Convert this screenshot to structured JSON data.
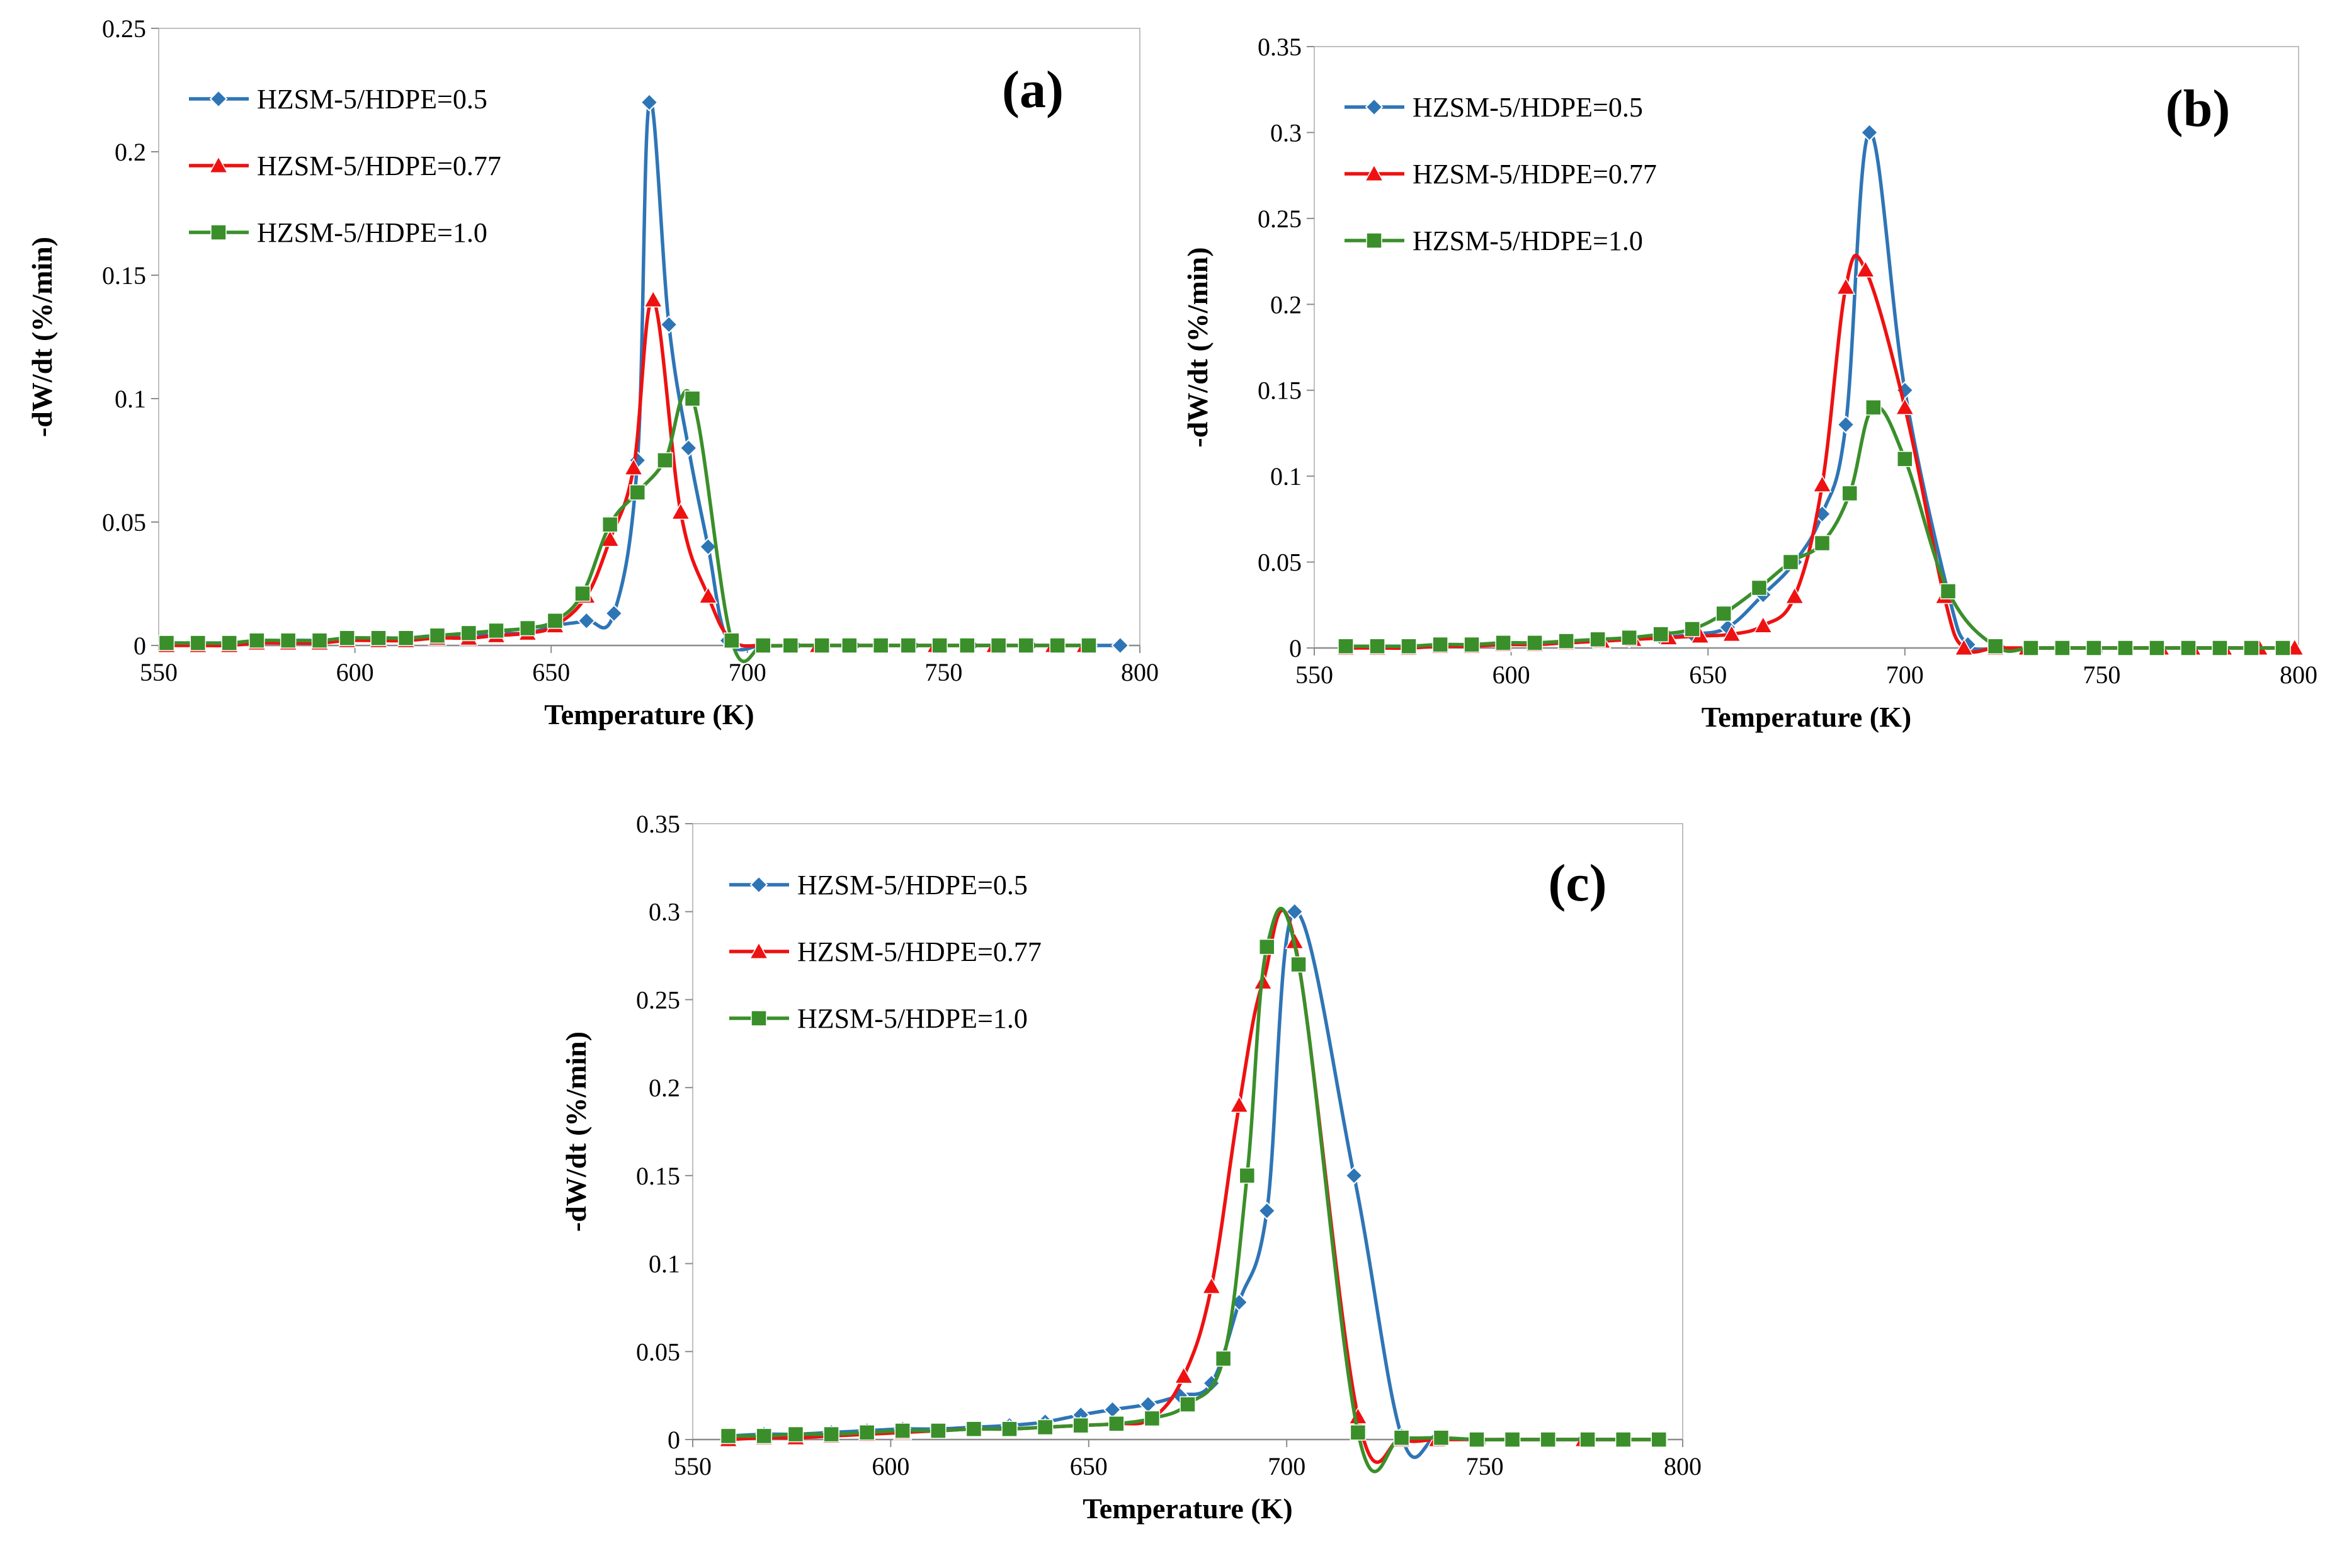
{
  "chart_data": [
    {
      "type": "line",
      "panel_label": "(a)",
      "xlabel": "Temperature (K)",
      "ylabel": "-dW/dt  (%/min)",
      "xlim": [
        550,
        800
      ],
      "ylim": [
        0,
        0.25
      ],
      "xticks": [
        "550",
        "600",
        "650",
        "700",
        "750",
        "800"
      ],
      "yticks": [
        "0",
        "0.05",
        "0.1",
        "0.15",
        "0.2",
        "0.25"
      ],
      "legend_position": "top-left",
      "series": [
        {
          "name": "HZSM-5/HDPE=0.5",
          "color": "#2E75B6",
          "marker": "diamond",
          "x": [
            552,
            560,
            568,
            575,
            583,
            591,
            598,
            606,
            613,
            621,
            629,
            636,
            644,
            651,
            659,
            666,
            672,
            675,
            680,
            685,
            690,
            695,
            704,
            712,
            719,
            727,
            734,
            742,
            749,
            757,
            764,
            772,
            779,
            787,
            795
          ],
          "y": [
            0.001,
            0.001,
            0.001,
            0.001,
            0.002,
            0.002,
            0.002,
            0.003,
            0.003,
            0.004,
            0.004,
            0.005,
            0.005,
            0.008,
            0.01,
            0.013,
            0.075,
            0.22,
            0.13,
            0.08,
            0.04,
            0.002,
            0.0,
            0.0,
            0.0,
            0.0,
            0.0,
            0.0,
            0.0,
            0.0,
            0.0,
            0.0,
            0.0,
            0.0,
            0.0
          ]
        },
        {
          "name": "HZSM-5/HDPE=0.77",
          "color": "#EE1111",
          "marker": "triangle",
          "x": [
            552,
            560,
            568,
            575,
            583,
            591,
            598,
            606,
            613,
            621,
            629,
            636,
            644,
            651,
            659,
            665,
            671,
            676,
            683,
            690,
            696,
            704,
            711,
            718,
            726,
            734,
            741,
            748,
            756,
            763,
            771,
            778,
            786
          ],
          "y": [
            0.0,
            0.0,
            0.0,
            0.001,
            0.001,
            0.001,
            0.002,
            0.002,
            0.002,
            0.003,
            0.003,
            0.004,
            0.005,
            0.008,
            0.02,
            0.043,
            0.072,
            0.14,
            0.054,
            0.02,
            0.002,
            0.0,
            0.0,
            0.0,
            0.0,
            0.0,
            0.0,
            0.0,
            0.0,
            0.0,
            0.0,
            0.0,
            0.0
          ]
        },
        {
          "name": "HZSM-5/HDPE=1.0",
          "color": "#3A8F2A",
          "marker": "square",
          "x": [
            552,
            560,
            568,
            575,
            583,
            591,
            598,
            606,
            613,
            621,
            629,
            636,
            644,
            651,
            658,
            665,
            672,
            679,
            686,
            696,
            704,
            711,
            719,
            726,
            734,
            741,
            749,
            756,
            764,
            771,
            779,
            787
          ],
          "y": [
            0.001,
            0.001,
            0.001,
            0.002,
            0.002,
            0.002,
            0.003,
            0.003,
            0.003,
            0.004,
            0.005,
            0.006,
            0.007,
            0.01,
            0.021,
            0.049,
            0.062,
            0.075,
            0.1,
            0.002,
            0.0,
            0.0,
            0.0,
            0.0,
            0.0,
            0.0,
            0.0,
            0.0,
            0.0,
            0.0,
            0.0,
            0.0
          ]
        }
      ]
    },
    {
      "type": "line",
      "panel_label": "(b)",
      "xlabel": "Temperature (K)",
      "ylabel": "-dW/dt  (%/min)",
      "xlim": [
        550,
        800
      ],
      "ylim": [
        0,
        0.35
      ],
      "xticks": [
        "550",
        "600",
        "650",
        "700",
        "750",
        "800"
      ],
      "yticks": [
        "0",
        "0.05",
        "0.1",
        "0.15",
        "0.2",
        "0.25",
        "0.3",
        "0.35"
      ],
      "legend_position": "top-left",
      "series": [
        {
          "name": "HZSM-5/HDPE=0.5",
          "color": "#2E75B6",
          "marker": "diamond",
          "x": [
            558,
            566,
            574,
            582,
            590,
            598,
            606,
            614,
            622,
            630,
            638,
            646,
            655,
            664,
            672,
            679,
            685,
            691,
            700,
            711,
            716,
            724,
            732,
            740,
            748,
            756,
            764,
            772,
            780,
            788,
            796
          ],
          "y": [
            0.001,
            0.001,
            0.001,
            0.001,
            0.002,
            0.002,
            0.003,
            0.003,
            0.004,
            0.005,
            0.006,
            0.008,
            0.012,
            0.031,
            0.05,
            0.078,
            0.13,
            0.3,
            0.15,
            0.032,
            0.002,
            0.0,
            0.0,
            0.0,
            0.0,
            0.0,
            0.0,
            0.0,
            0.0,
            0.0,
            0.0
          ]
        },
        {
          "name": "HZSM-5/HDPE=0.77",
          "color": "#EE1111",
          "marker": "triangle",
          "x": [
            558,
            566,
            574,
            582,
            590,
            598,
            606,
            614,
            623,
            631,
            640,
            648,
            656,
            664,
            672,
            679,
            685,
            690,
            700,
            710,
            715,
            723,
            731,
            740,
            748,
            756,
            765,
            773,
            781,
            790,
            799
          ],
          "y": [
            0.0,
            0.0,
            0.0,
            0.001,
            0.001,
            0.002,
            0.002,
            0.003,
            0.004,
            0.005,
            0.006,
            0.007,
            0.008,
            0.013,
            0.03,
            0.095,
            0.21,
            0.22,
            0.14,
            0.03,
            0.0,
            0.0,
            0.0,
            0.0,
            0.0,
            0.0,
            0.0,
            0.0,
            0.0,
            0.0,
            0.0
          ]
        },
        {
          "name": "HZSM-5/HDPE=1.0",
          "color": "#3A8F2A",
          "marker": "square",
          "x": [
            558,
            566,
            574,
            582,
            590,
            598,
            606,
            614,
            622,
            630,
            638,
            646,
            654,
            663,
            671,
            679,
            686,
            692,
            700,
            711,
            723,
            732,
            740,
            748,
            756,
            764,
            772,
            780,
            788,
            796
          ],
          "y": [
            0.001,
            0.001,
            0.001,
            0.002,
            0.002,
            0.003,
            0.003,
            0.004,
            0.005,
            0.006,
            0.008,
            0.011,
            0.02,
            0.035,
            0.05,
            0.061,
            0.09,
            0.14,
            0.11,
            0.033,
            0.001,
            0.0,
            0.0,
            0.0,
            0.0,
            0.0,
            0.0,
            0.0,
            0.0,
            0.0
          ]
        }
      ]
    },
    {
      "type": "line",
      "panel_label": "(c)",
      "xlabel": "Temperature (K)",
      "ylabel": "-dW/dt  (%/min)",
      "xlim": [
        550,
        800
      ],
      "ylim": [
        0,
        0.35
      ],
      "xticks": [
        "550",
        "600",
        "650",
        "700",
        "750",
        "800"
      ],
      "yticks": [
        "0",
        "0.05",
        "0.1",
        "0.15",
        "0.2",
        "0.25",
        "0.3",
        "0.35"
      ],
      "legend_position": "top-left",
      "series": [
        {
          "name": "HZSM-5/HDPE=0.5",
          "color": "#2E75B6",
          "marker": "diamond",
          "x": [
            559,
            568,
            576,
            585,
            594,
            603,
            612,
            621,
            630,
            639,
            648,
            656,
            665,
            673,
            681,
            688,
            695,
            702,
            717,
            729,
            738,
            748,
            757,
            766,
            775,
            785,
            794
          ],
          "y": [
            0.002,
            0.003,
            0.003,
            0.004,
            0.005,
            0.006,
            0.006,
            0.007,
            0.008,
            0.01,
            0.014,
            0.017,
            0.02,
            0.025,
            0.032,
            0.078,
            0.13,
            0.3,
            0.15,
            0.002,
            0.001,
            0.0,
            0.0,
            0.0,
            0.0,
            0.0,
            0.0
          ]
        },
        {
          "name": "HZSM-5/HDPE=0.77",
          "color": "#EE1111",
          "marker": "triangle",
          "x": [
            559,
            568,
            576,
            585,
            594,
            603,
            612,
            621,
            630,
            639,
            648,
            657,
            666,
            674,
            681,
            688,
            694,
            702,
            718,
            729,
            738,
            748,
            757,
            766,
            775,
            785,
            794
          ],
          "y": [
            0.0,
            0.001,
            0.001,
            0.002,
            0.003,
            0.004,
            0.005,
            0.006,
            0.006,
            0.007,
            0.008,
            0.009,
            0.012,
            0.036,
            0.087,
            0.19,
            0.26,
            0.283,
            0.013,
            0.0,
            0.0,
            0.0,
            0.0,
            0.0,
            0.0,
            0.0,
            0.0
          ]
        },
        {
          "name": "HZSM-5/HDPE=1.0",
          "color": "#3A8F2A",
          "marker": "square",
          "x": [
            559,
            568,
            576,
            585,
            594,
            603,
            612,
            621,
            630,
            639,
            648,
            657,
            666,
            675,
            684,
            690,
            695,
            703,
            718,
            729,
            739,
            748,
            757,
            766,
            776,
            785,
            794
          ],
          "y": [
            0.002,
            0.002,
            0.003,
            0.003,
            0.004,
            0.005,
            0.005,
            0.006,
            0.006,
            0.007,
            0.008,
            0.009,
            0.012,
            0.02,
            0.046,
            0.15,
            0.28,
            0.27,
            0.004,
            0.001,
            0.001,
            0.0,
            0.0,
            0.0,
            0.0,
            0.0,
            0.0
          ]
        }
      ]
    }
  ]
}
